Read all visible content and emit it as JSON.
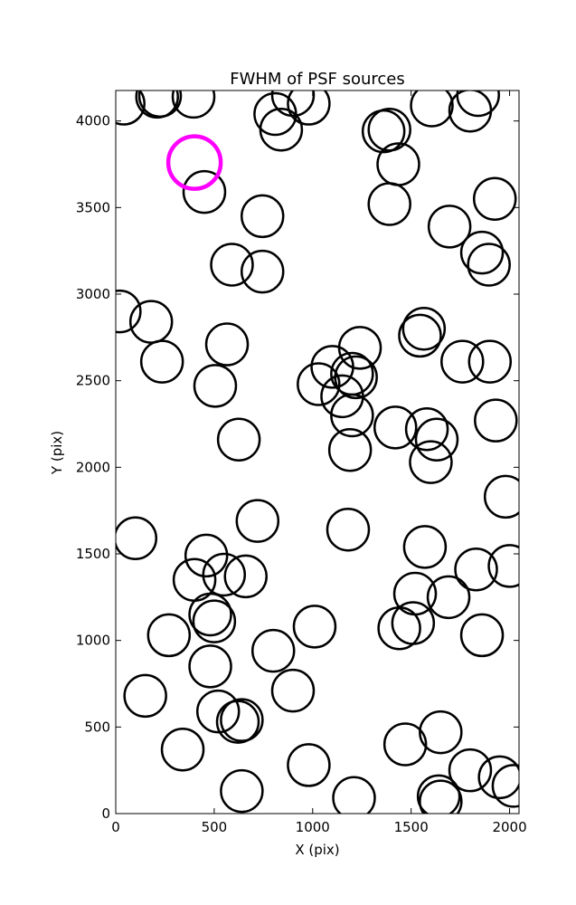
{
  "chart_data": {
    "type": "scatter",
    "title": "FWHM of PSF sources",
    "xlabel": "X (pix)",
    "ylabel": "Y (pix)",
    "xlim": [
      0,
      2048
    ],
    "ylim": [
      0,
      4176
    ],
    "xticks": [
      0,
      500,
      1000,
      1500,
      2000
    ],
    "yticks": [
      0,
      500,
      1000,
      1500,
      2000,
      2500,
      3000,
      3500,
      4000
    ],
    "grid": false,
    "marker_color": "#000000",
    "highlight_color": "#ff00ff",
    "highlight_point": {
      "x": 400,
      "y": 3760
    },
    "points": [
      {
        "x": 40,
        "y": 4100
      },
      {
        "x": 210,
        "y": 4140
      },
      {
        "x": 225,
        "y": 4145
      },
      {
        "x": 395,
        "y": 4140
      },
      {
        "x": 810,
        "y": 4040
      },
      {
        "x": 900,
        "y": 4150
      },
      {
        "x": 980,
        "y": 4100
      },
      {
        "x": 840,
        "y": 3950
      },
      {
        "x": 450,
        "y": 3590
      },
      {
        "x": 745,
        "y": 3450
      },
      {
        "x": 590,
        "y": 3170
      },
      {
        "x": 745,
        "y": 3130
      },
      {
        "x": 20,
        "y": 2900
      },
      {
        "x": 180,
        "y": 2840
      },
      {
        "x": 235,
        "y": 2610
      },
      {
        "x": 565,
        "y": 2710
      },
      {
        "x": 505,
        "y": 2470
      },
      {
        "x": 625,
        "y": 2160
      },
      {
        "x": 1360,
        "y": 3940
      },
      {
        "x": 1390,
        "y": 3950
      },
      {
        "x": 1435,
        "y": 3750
      },
      {
        "x": 1390,
        "y": 3520
      },
      {
        "x": 1605,
        "y": 4090
      },
      {
        "x": 1800,
        "y": 4060
      },
      {
        "x": 1840,
        "y": 4150
      },
      {
        "x": 1695,
        "y": 3390
      },
      {
        "x": 1925,
        "y": 3550
      },
      {
        "x": 1860,
        "y": 3240
      },
      {
        "x": 1895,
        "y": 3170
      },
      {
        "x": 1545,
        "y": 2760
      },
      {
        "x": 1565,
        "y": 2800
      },
      {
        "x": 1760,
        "y": 2610
      },
      {
        "x": 1900,
        "y": 2610
      },
      {
        "x": 1930,
        "y": 2270
      },
      {
        "x": 1240,
        "y": 2690
      },
      {
        "x": 1100,
        "y": 2580
      },
      {
        "x": 1200,
        "y": 2540
      },
      {
        "x": 1220,
        "y": 2520
      },
      {
        "x": 1030,
        "y": 2480
      },
      {
        "x": 1150,
        "y": 2410
      },
      {
        "x": 1200,
        "y": 2300
      },
      {
        "x": 1190,
        "y": 2100
      },
      {
        "x": 1420,
        "y": 2230
      },
      {
        "x": 1580,
        "y": 2220
      },
      {
        "x": 1630,
        "y": 2160
      },
      {
        "x": 1600,
        "y": 2030
      },
      {
        "x": 1980,
        "y": 1830
      },
      {
        "x": 100,
        "y": 1590
      },
      {
        "x": 720,
        "y": 1690
      },
      {
        "x": 1180,
        "y": 1640
      },
      {
        "x": 1570,
        "y": 1540
      },
      {
        "x": 460,
        "y": 1490
      },
      {
        "x": 400,
        "y": 1350
      },
      {
        "x": 550,
        "y": 1380
      },
      {
        "x": 660,
        "y": 1370
      },
      {
        "x": 480,
        "y": 1150
      },
      {
        "x": 500,
        "y": 1110
      },
      {
        "x": 270,
        "y": 1030
      },
      {
        "x": 1010,
        "y": 1080
      },
      {
        "x": 800,
        "y": 940
      },
      {
        "x": 480,
        "y": 850
      },
      {
        "x": 900,
        "y": 710
      },
      {
        "x": 150,
        "y": 680
      },
      {
        "x": 520,
        "y": 590
      },
      {
        "x": 620,
        "y": 530
      },
      {
        "x": 640,
        "y": 540
      },
      {
        "x": 340,
        "y": 370
      },
      {
        "x": 980,
        "y": 280
      },
      {
        "x": 640,
        "y": 130
      },
      {
        "x": 1210,
        "y": 90
      },
      {
        "x": 2000,
        "y": 1430
      },
      {
        "x": 1830,
        "y": 1410
      },
      {
        "x": 1520,
        "y": 1270
      },
      {
        "x": 1690,
        "y": 1250
      },
      {
        "x": 1440,
        "y": 1070
      },
      {
        "x": 1510,
        "y": 1100
      },
      {
        "x": 1860,
        "y": 1030
      },
      {
        "x": 1470,
        "y": 400
      },
      {
        "x": 1650,
        "y": 470
      },
      {
        "x": 1800,
        "y": 250
      },
      {
        "x": 1950,
        "y": 210
      },
      {
        "x": 2020,
        "y": 160
      },
      {
        "x": 1640,
        "y": 100
      },
      {
        "x": 1650,
        "y": 70
      }
    ]
  }
}
